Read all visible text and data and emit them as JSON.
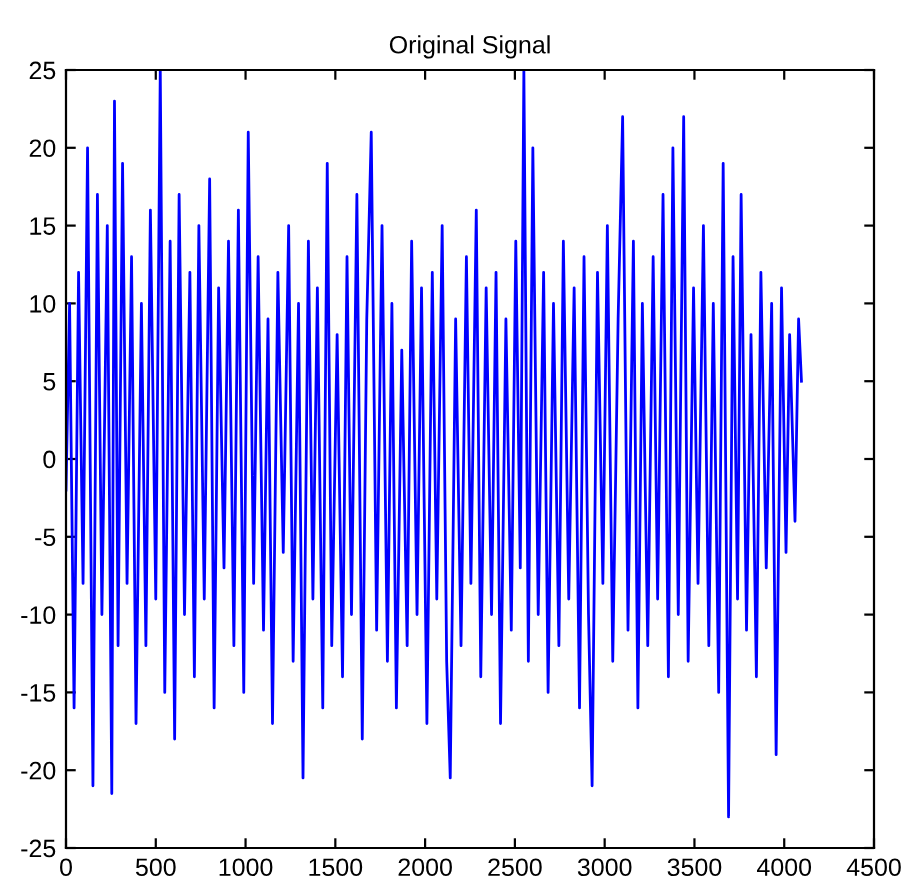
{
  "chart_data": {
    "type": "line",
    "title": "Original Signal",
    "x": [
      0,
      20,
      45,
      70,
      95,
      120,
      150,
      175,
      200,
      230,
      255,
      270,
      290,
      315,
      340,
      365,
      390,
      420,
      445,
      470,
      500,
      525,
      550,
      580,
      605,
      630,
      660,
      690,
      715,
      740,
      770,
      800,
      825,
      850,
      880,
      905,
      935,
      960,
      990,
      1015,
      1045,
      1070,
      1100,
      1125,
      1150,
      1180,
      1210,
      1240,
      1265,
      1295,
      1320,
      1350,
      1375,
      1400,
      1430,
      1455,
      1480,
      1510,
      1540,
      1565,
      1590,
      1620,
      1650,
      1675,
      1700,
      1730,
      1760,
      1790,
      1815,
      1840,
      1870,
      1900,
      1925,
      1955,
      1980,
      2010,
      2040,
      2065,
      2095,
      2120,
      2140,
      2170,
      2200,
      2230,
      2255,
      2285,
      2310,
      2340,
      2370,
      2395,
      2420,
      2450,
      2480,
      2505,
      2530,
      2550,
      2575,
      2600,
      2630,
      2660,
      2685,
      2715,
      2745,
      2770,
      2800,
      2830,
      2860,
      2885,
      2910,
      2930,
      2960,
      2990,
      3015,
      3045,
      3075,
      3100,
      3130,
      3160,
      3185,
      3210,
      3240,
      3270,
      3295,
      3325,
      3355,
      3380,
      3410,
      3440,
      3465,
      3495,
      3520,
      3550,
      3580,
      3605,
      3635,
      3660,
      3690,
      3715,
      3740,
      3760,
      3790,
      3815,
      3845,
      3870,
      3900,
      3930,
      3955,
      3985,
      4010,
      4030,
      4060,
      4080,
      4096
    ],
    "series": [
      {
        "color": "#0000ff",
        "values": [
          -2,
          10,
          -16,
          12,
          -8,
          20,
          -21,
          17,
          -10,
          15,
          -21.5,
          23,
          -12,
          19,
          -8,
          13,
          -17,
          10,
          -12,
          16,
          -9,
          25,
          -15,
          14,
          -18,
          17,
          -10,
          12,
          -14,
          15,
          -9,
          18,
          -16,
          11,
          -7,
          14,
          -12,
          16,
          -15,
          21,
          -8,
          13,
          -11,
          9,
          -17,
          12,
          -6,
          15,
          -13,
          10,
          -20.5,
          14,
          -9,
          11,
          -16,
          19,
          -12,
          8,
          -14,
          13,
          -10,
          17,
          -18,
          9,
          21,
          -11,
          15,
          -13,
          10,
          -16,
          7,
          -12,
          14,
          -10,
          11,
          -17,
          12,
          -9,
          15,
          -13,
          -20.5,
          9,
          -12,
          13,
          -8,
          16,
          -14,
          11,
          -10,
          12,
          -17,
          9,
          -11,
          14,
          -7,
          25,
          -13,
          20,
          -10,
          12,
          -15,
          10,
          -12,
          14,
          -9,
          11,
          -16,
          13,
          -10,
          -21,
          12,
          -8,
          15,
          -13,
          9,
          22,
          -11,
          14,
          -16,
          10,
          -12,
          13,
          -9,
          17,
          -14,
          20,
          -10,
          22,
          -13,
          11,
          -8,
          15,
          -12,
          10,
          -15,
          19,
          -23,
          13,
          -9,
          17,
          -11,
          8,
          -14,
          12,
          -7,
          10,
          -19,
          11,
          -6,
          8,
          -4,
          9,
          5
        ]
      }
    ],
    "xlim": [
      0,
      4500
    ],
    "xticks": [
      0,
      500,
      1000,
      1500,
      2000,
      2500,
      3000,
      3500,
      4000,
      4500
    ],
    "ylim": [
      -25,
      25
    ],
    "yticks": [
      -25,
      -20,
      -15,
      -10,
      -5,
      0,
      5,
      10,
      15,
      20,
      25
    ],
    "grid": false,
    "legend": false
  }
}
